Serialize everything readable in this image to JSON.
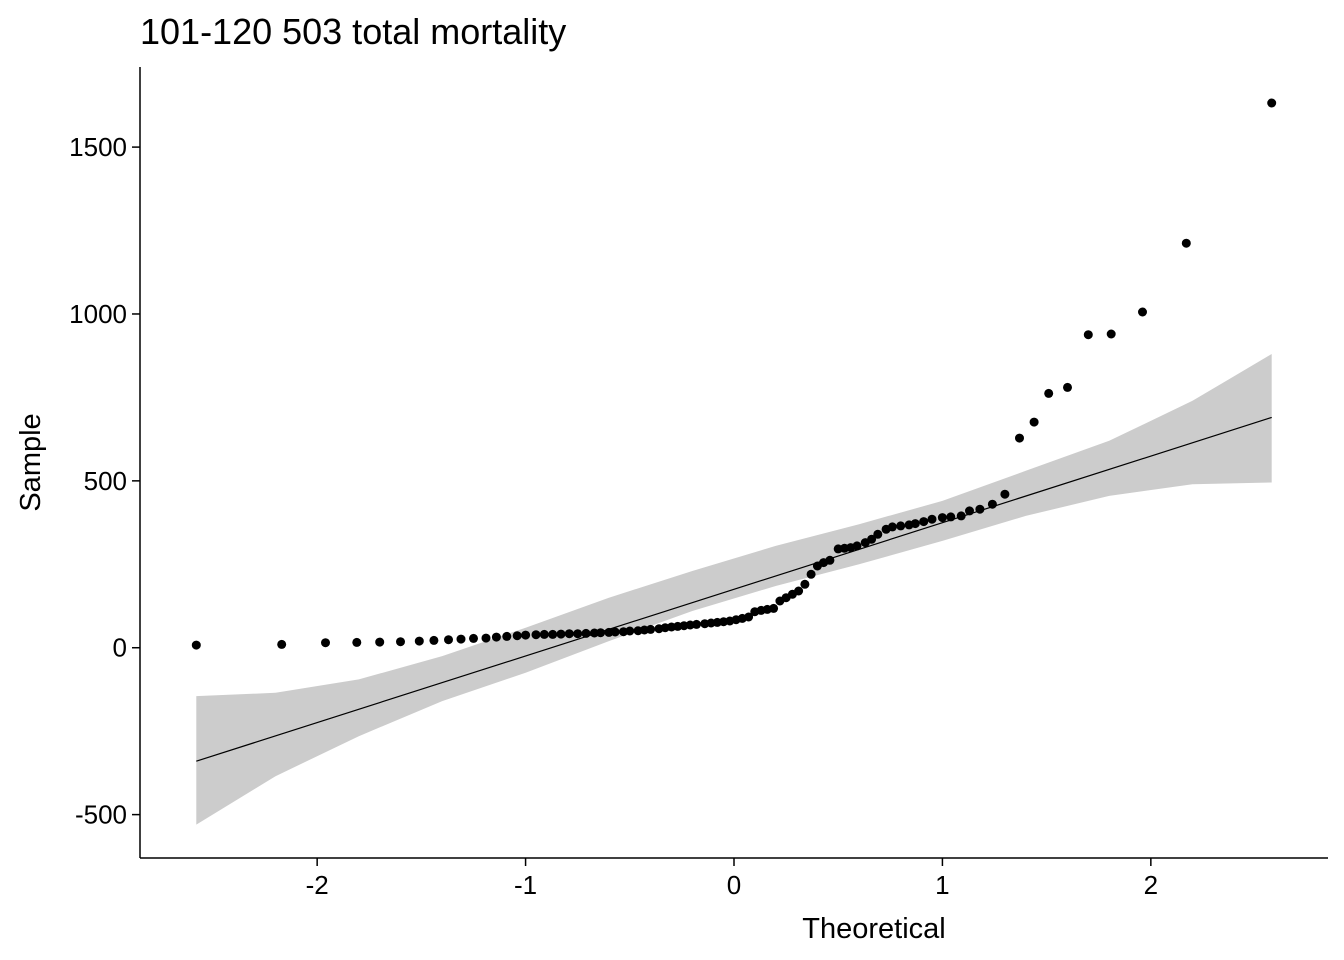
{
  "chart_data": {
    "type": "scatter",
    "title": "101-120 503 total mortality",
    "xlabel": "Theoretical",
    "ylabel": "Sample",
    "xlim": [
      -2.85,
      2.85
    ],
    "ylim": [
      -630,
      1740
    ],
    "x_ticks": [
      -2,
      -1,
      0,
      1,
      2
    ],
    "x_tick_labels": [
      "-2",
      "-1",
      "0",
      "1",
      "2"
    ],
    "y_ticks": [
      -500,
      0,
      500,
      1000,
      1500
    ],
    "y_tick_labels": [
      "-500",
      "0",
      "500",
      "1000",
      "1500"
    ],
    "grid": false,
    "colors": {
      "points": "#000000",
      "band": "#cccccc",
      "line": "#000000",
      "axis": "#000000"
    },
    "reference_line": {
      "x": [
        -2.58,
        2.58
      ],
      "y": [
        -340,
        690
      ]
    },
    "confidence_band": {
      "x": [
        -2.58,
        -2.2,
        -1.8,
        -1.4,
        -1.0,
        -0.6,
        -0.2,
        0.2,
        0.6,
        1.0,
        1.4,
        1.8,
        2.2,
        2.58
      ],
      "upper": [
        -145,
        -135,
        -95,
        -25,
        60,
        150,
        230,
        305,
        370,
        440,
        530,
        620,
        740,
        880
      ],
      "lower": [
        -530,
        -385,
        -265,
        -160,
        -75,
        20,
        110,
        185,
        250,
        320,
        395,
        455,
        490,
        495
      ]
    },
    "points": {
      "x": [
        -2.58,
        -2.17,
        -1.96,
        -1.81,
        -1.7,
        -1.6,
        -1.51,
        -1.44,
        -1.37,
        -1.31,
        -1.25,
        -1.19,
        -1.14,
        -1.09,
        -1.04,
        -1.0,
        -0.95,
        -0.91,
        -0.87,
        -0.83,
        -0.79,
        -0.75,
        -0.71,
        -0.67,
        -0.64,
        -0.6,
        -0.57,
        -0.53,
        -0.5,
        -0.46,
        -0.43,
        -0.4,
        -0.36,
        -0.33,
        -0.3,
        -0.27,
        -0.24,
        -0.21,
        -0.18,
        -0.14,
        -0.11,
        -0.08,
        -0.05,
        -0.02,
        0.01,
        0.04,
        0.07,
        0.1,
        0.13,
        0.16,
        0.19,
        0.22,
        0.25,
        0.28,
        0.31,
        0.34,
        0.37,
        0.4,
        0.43,
        0.46,
        0.5,
        0.53,
        0.56,
        0.59,
        0.63,
        0.66,
        0.69,
        0.73,
        0.76,
        0.8,
        0.84,
        0.87,
        0.91,
        0.95,
        1.0,
        1.04,
        1.09,
        1.13,
        1.18,
        1.24,
        1.3,
        1.37,
        1.44,
        1.51,
        1.6,
        1.7,
        1.81,
        1.96,
        2.17,
        2.58
      ],
      "y": [
        8,
        10,
        15,
        16,
        17,
        18,
        20,
        22,
        24,
        26,
        28,
        29,
        32,
        34,
        36,
        38,
        39,
        40,
        40,
        41,
        42,
        42,
        43,
        44,
        45,
        46,
        47,
        48,
        50,
        51,
        53,
        55,
        57,
        60,
        62,
        64,
        66,
        68,
        70,
        72,
        74,
        76,
        78,
        80,
        84,
        88,
        92,
        108,
        112,
        115,
        118,
        140,
        150,
        160,
        170,
        190,
        220,
        245,
        255,
        262,
        296,
        298,
        300,
        305,
        315,
        325,
        340,
        355,
        362,
        365,
        368,
        372,
        378,
        385,
        390,
        392,
        395,
        410,
        415,
        430,
        460,
        628,
        676,
        762,
        780,
        938,
        940,
        1006,
        1212,
        1632
      ]
    }
  }
}
